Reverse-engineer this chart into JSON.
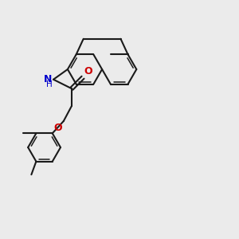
{
  "bg_color": "#ebebeb",
  "bond_color": "#1a1a1a",
  "N_color": "#0000cc",
  "O_color": "#cc0000",
  "lw": 1.5,
  "lw2": 1.1,
  "fig_size": [
    3.0,
    3.0
  ],
  "dpi": 100,
  "atoms": {
    "NH_label": "NH",
    "O_amide": "O",
    "O_ether": "O"
  }
}
